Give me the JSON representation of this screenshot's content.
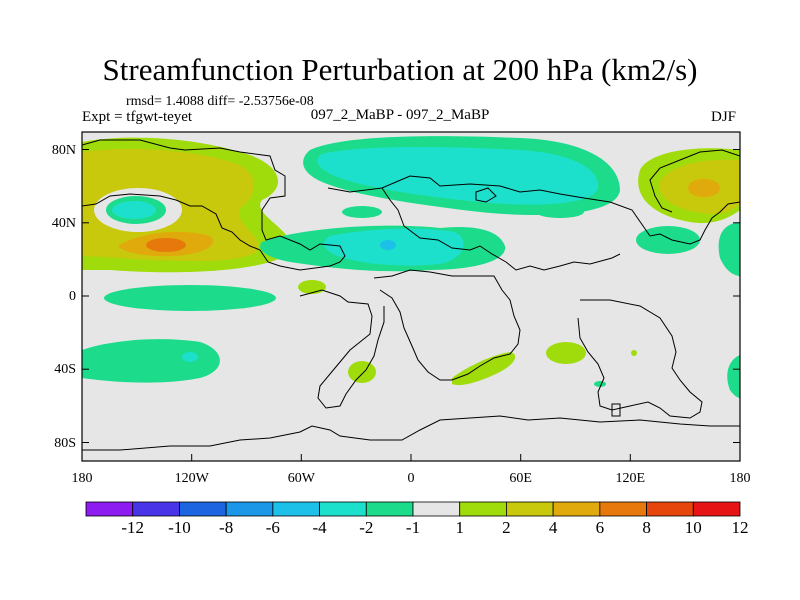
{
  "title": "Streamfunction Perturbation at 200 hPa (km2/s)",
  "stats": "rmsd= 1.4088 diff= -2.53756e-08",
  "expt": "Expt = tfgwt-teyet",
  "cases": "097_2_MaBP - 097_2_MaBP",
  "season": "DJF",
  "map": {
    "lon_ticks": [
      "180",
      "120W",
      "60W",
      "0",
      "60E",
      "120E",
      "180"
    ],
    "lat_ticks": [
      "80N",
      "40N",
      "0",
      "40S",
      "80S"
    ]
  },
  "colorbar": {
    "labels": [
      "-12",
      "-10",
      "-8",
      "-6",
      "-4",
      "-2",
      "-1",
      "1",
      "2",
      "4",
      "6",
      "8",
      "10",
      "12"
    ],
    "colors": [
      "#8c1cf0",
      "#4a34e8",
      "#1c64e0",
      "#1c96e6",
      "#1cc0e8",
      "#1ce0cc",
      "#1cdc8c",
      "#e6e6e6",
      "#a0dc0c",
      "#c8c80c",
      "#e0aa0c",
      "#e6780c",
      "#e6460c",
      "#e61414"
    ]
  }
}
